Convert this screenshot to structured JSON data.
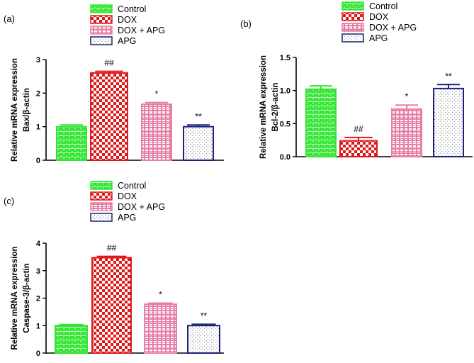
{
  "colors": {
    "Control": "#33e633",
    "DOX": "#e01818",
    "DOX + APG": "#e67fa6",
    "APG": "#1a237e"
  },
  "chart_data": [
    {
      "panel": "(a)",
      "type": "bar",
      "categories": [
        "Control",
        "DOX",
        "DOX + APG",
        "APG"
      ],
      "values": [
        1.0,
        2.6,
        1.67,
        1.0
      ],
      "errors": [
        0.05,
        0.05,
        0.05,
        0.05
      ],
      "annotations": [
        "",
        "##",
        "*",
        "**"
      ],
      "ylabel_line1": "Relative mRNA expression",
      "ylabel_line2": "Bax/β-actin",
      "ylim": [
        0,
        3
      ],
      "yticks": [
        "0",
        "1",
        "2",
        "3"
      ],
      "legend": [
        "Control",
        "DOX",
        "DOX + APG",
        "APG"
      ]
    },
    {
      "panel": "(b)",
      "type": "bar",
      "categories": [
        "Control",
        "DOX",
        "DOX + APG",
        "APG"
      ],
      "values": [
        1.02,
        0.24,
        0.72,
        1.03
      ],
      "errors": [
        0.05,
        0.05,
        0.06,
        0.06
      ],
      "annotations": [
        "",
        "##",
        "*",
        "**"
      ],
      "ylabel_line1": "Relative mRNA expression",
      "ylabel_line2": "Bcl-2/β-actin",
      "ylim": [
        0,
        1.5
      ],
      "yticks": [
        "0.0",
        "0.5",
        "1.0",
        "1.5"
      ],
      "legend": [
        "Control",
        "DOX",
        "DOX + APG",
        "APG"
      ]
    },
    {
      "panel": "(c)",
      "type": "bar",
      "categories": [
        "Control",
        "DOX",
        "DOX + APG",
        "APG"
      ],
      "values": [
        1.0,
        3.47,
        1.78,
        1.0
      ],
      "errors": [
        0.04,
        0.05,
        0.04,
        0.05
      ],
      "annotations": [
        "",
        "##",
        "*",
        "**"
      ],
      "ylabel_line1": "Relative mRNA expression",
      "ylabel_line2": "Caspase-3/β-actin",
      "ylim": [
        0,
        4
      ],
      "yticks": [
        "0",
        "1",
        "2",
        "3",
        "4"
      ],
      "legend": [
        "Control",
        "DOX",
        "DOX + APG",
        "APG"
      ]
    }
  ]
}
